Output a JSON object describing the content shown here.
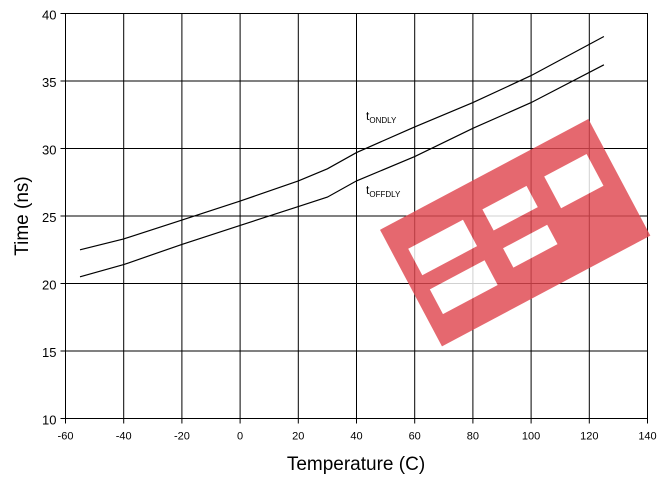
{
  "chart_data": {
    "type": "line",
    "title": "",
    "xlabel": "Temperature (C)",
    "ylabel": "Time (ns)",
    "xlim": [
      -60,
      140
    ],
    "ylim": [
      10,
      40
    ],
    "xticks": [
      -60,
      -40,
      -20,
      0,
      20,
      40,
      60,
      80,
      100,
      120,
      140
    ],
    "yticks": [
      10,
      15,
      20,
      25,
      30,
      35,
      40
    ],
    "grid": true,
    "series": [
      {
        "name": "tONDLY",
        "label_main": "t",
        "label_sub": "ONDLY",
        "x": [
          -55,
          -40,
          -20,
          0,
          20,
          30,
          40,
          60,
          80,
          100,
          125
        ],
        "y": [
          22.5,
          23.3,
          24.7,
          26.1,
          27.6,
          28.5,
          29.7,
          31.6,
          33.4,
          35.4,
          38.3
        ]
      },
      {
        "name": "tOFFDLY",
        "label_main": "t",
        "label_sub": "OFFDLY",
        "x": [
          -55,
          -40,
          -20,
          0,
          20,
          30,
          40,
          60,
          80,
          100,
          125
        ],
        "y": [
          20.5,
          21.4,
          22.9,
          24.3,
          25.7,
          26.4,
          27.6,
          29.4,
          31.5,
          33.4,
          36.2
        ]
      }
    ]
  },
  "watermark": {
    "color": "#e04850",
    "depicts": "tilted red block-letter logo"
  }
}
